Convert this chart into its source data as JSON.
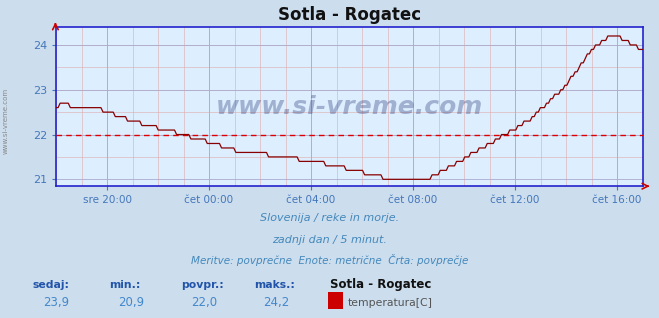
{
  "title": "Sotla - Rogatec",
  "bg_color": "#ccdded",
  "plot_bg_color": "#ddeeff",
  "line_color": "#880000",
  "avg_line_color": "#dd0000",
  "avg_value": 22.0,
  "ylim": [
    20.85,
    24.4
  ],
  "yticks": [
    21,
    22,
    23,
    24
  ],
  "tick_color": "#4477bb",
  "grid_color_v": "#aaaacc",
  "grid_color_h_major": "#aaaacc",
  "grid_color_h_minor": "#ddaaaa",
  "grid_color_v_minor": "#ddaaaa",
  "spine_color": "#2222cc",
  "watermark": "www.si-vreme.com",
  "watermark_color": "#112266",
  "left_label": "www.si-vreme.com",
  "left_label_color": "#888888",
  "subtitle1": "Slovenija / reke in morje.",
  "subtitle2": "zadnji dan / 5 minut.",
  "subtitle3": "Meritve: povprečne  Enote: metrične  Črta: povprečje",
  "subtitle_color": "#4488bb",
  "footer_labels": [
    "sedaj:",
    "min.:",
    "povpr.:",
    "maks.:"
  ],
  "footer_values": [
    "23,9",
    "20,9",
    "22,0",
    "24,2"
  ],
  "footer_label_color": "#2255aa",
  "footer_value_color": "#4488cc",
  "footer_station": "Sotla - Rogatec",
  "footer_station_color": "#111111",
  "footer_param": "temperatura[C]",
  "footer_param_color": "#555555",
  "legend_color": "#cc0000",
  "xtick_labels": [
    "sre 20:00",
    "čet 00:00",
    "čet 04:00",
    "čet 08:00",
    "čet 12:00",
    "čet 16:00"
  ],
  "tick_hours": [
    2,
    6,
    10,
    14,
    18,
    22
  ],
  "xlim": [
    0,
    23
  ],
  "arrow_color": "#cc0000"
}
